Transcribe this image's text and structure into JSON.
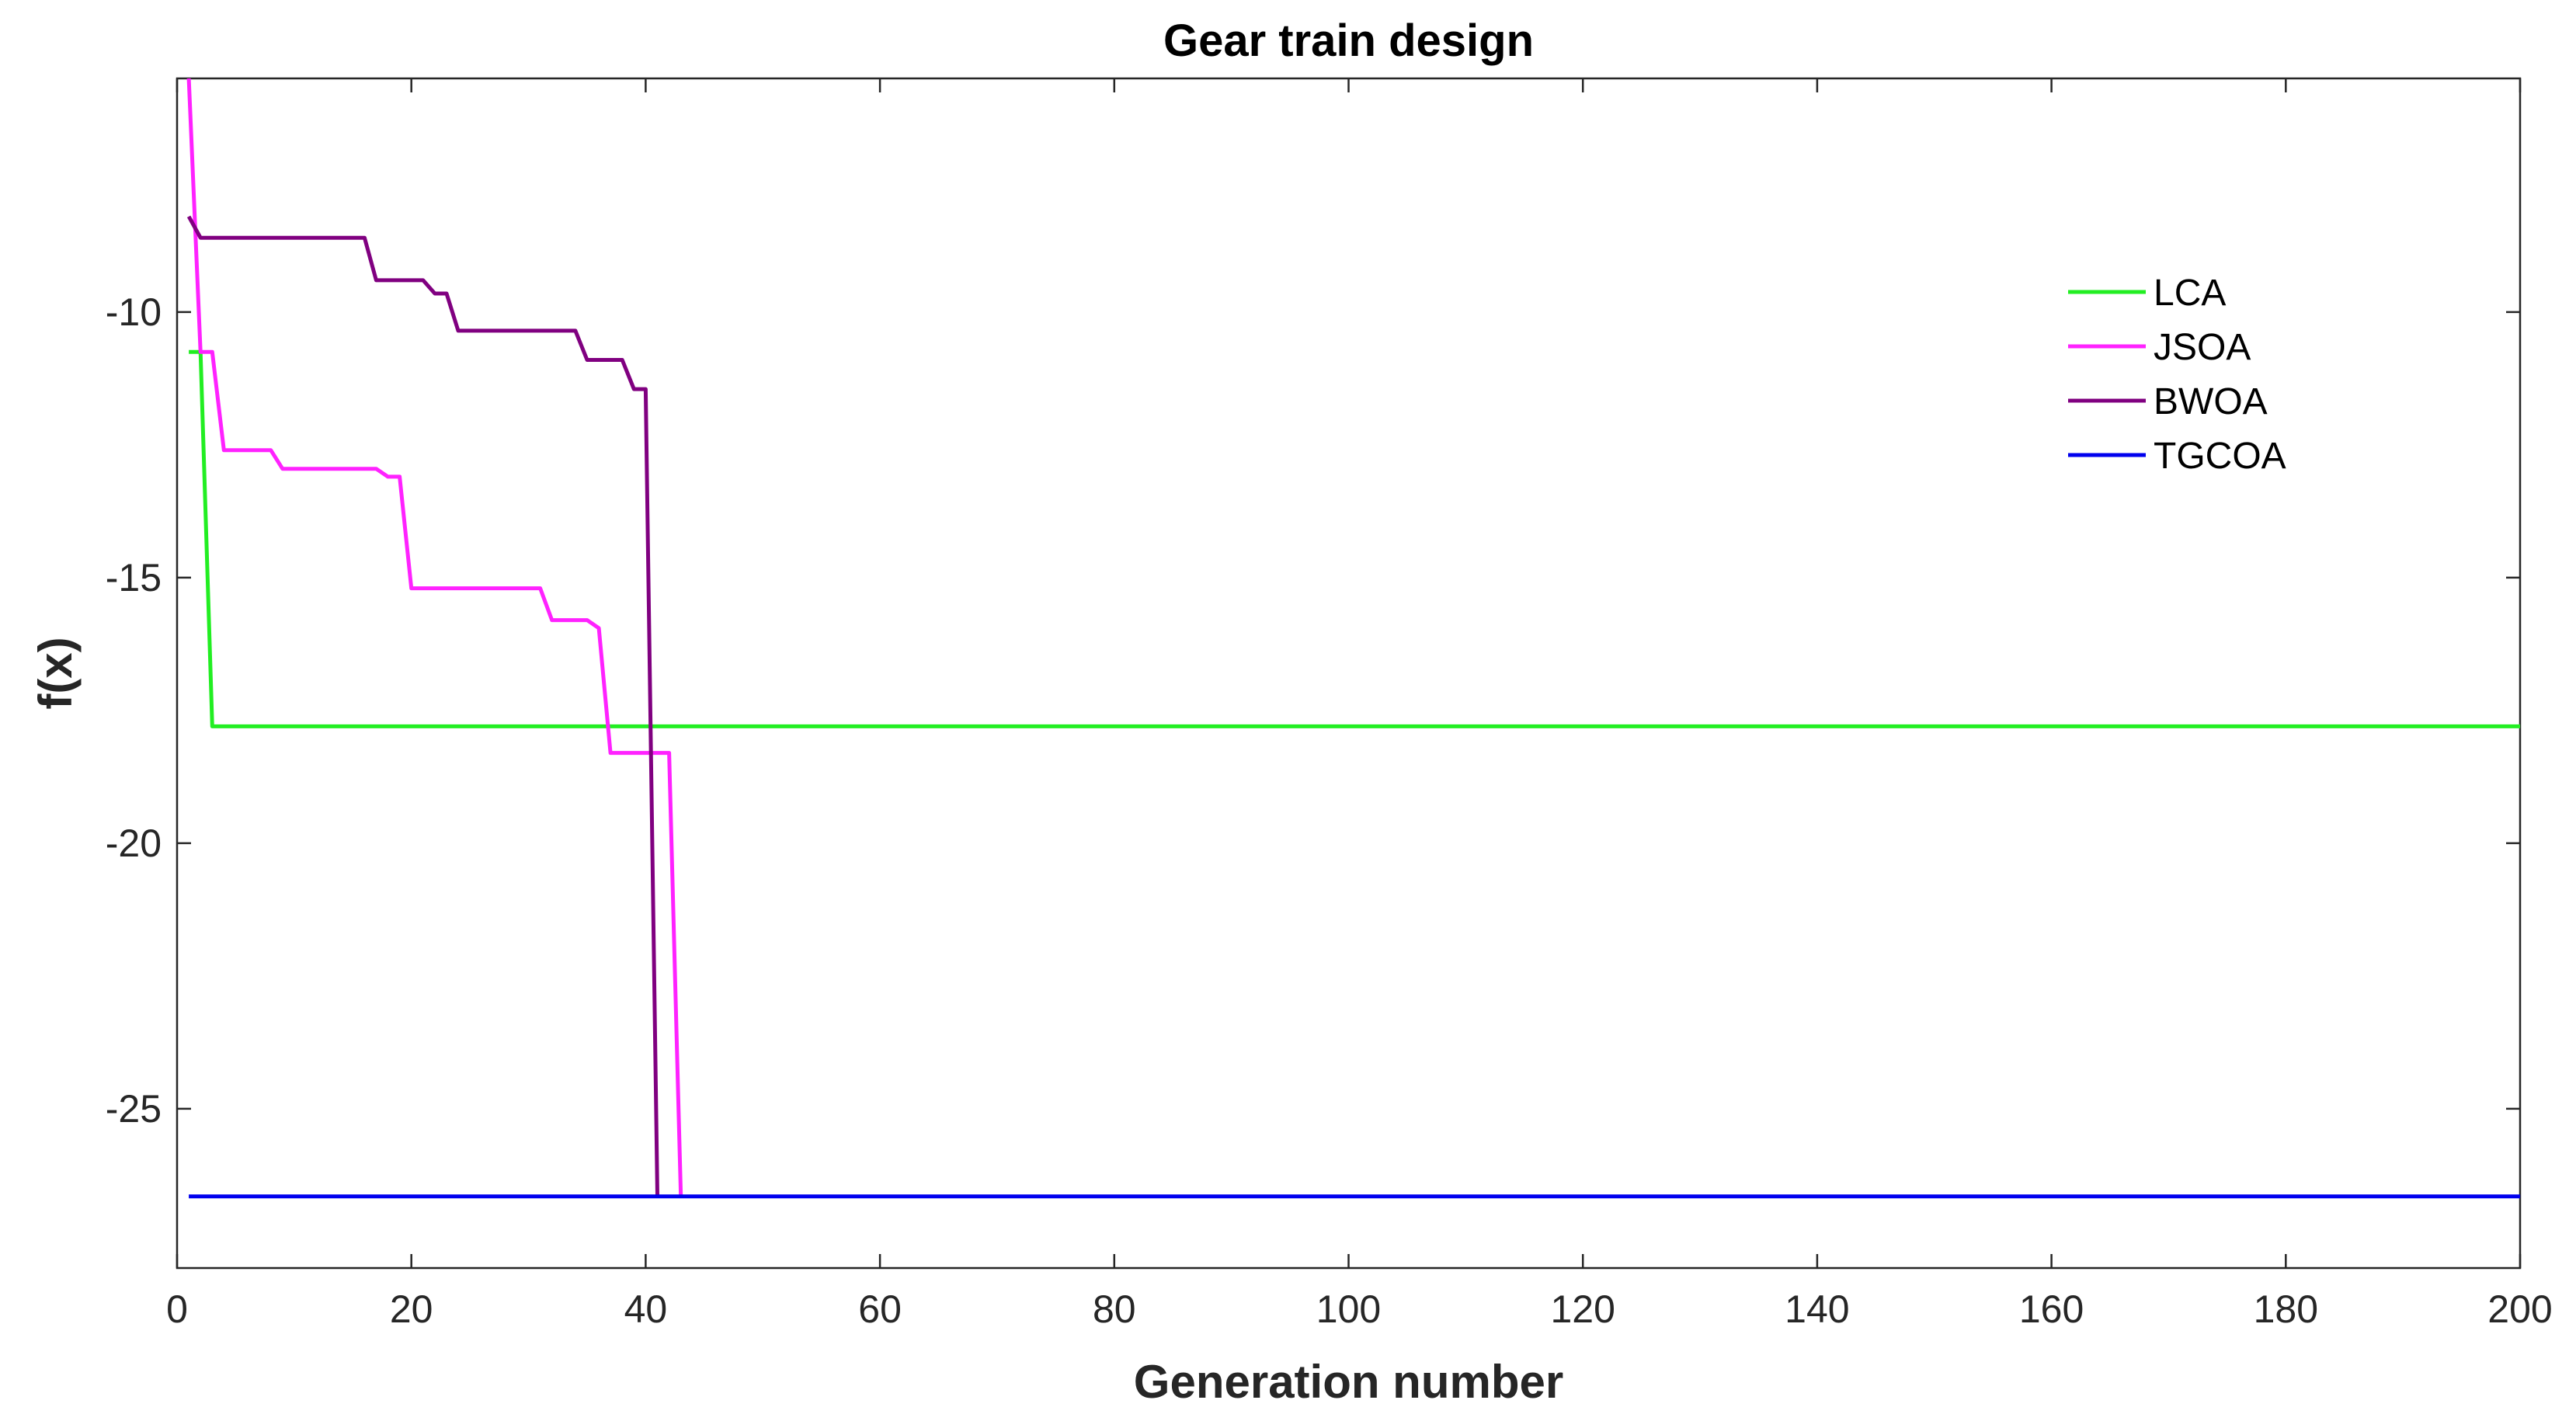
{
  "chart_data": {
    "type": "line",
    "title": "Gear train design",
    "xlabel": "Generation number",
    "ylabel": "f(x)",
    "xlim": [
      0,
      200
    ],
    "ylim": [
      -28.0,
      -5.6
    ],
    "xticks": [
      0,
      20,
      40,
      60,
      80,
      100,
      120,
      140,
      160,
      180,
      200
    ],
    "yticks": [
      -25,
      -20,
      -15,
      -10
    ],
    "grid": false,
    "legend": {
      "position": "upper-right",
      "box": false
    },
    "series": [
      {
        "name": "LCA",
        "color": "#22ee22",
        "x": [
          1,
          2,
          3,
          200
        ],
        "y": [
          -10.75,
          -10.75,
          -17.8,
          -17.8
        ]
      },
      {
        "name": "JSOA",
        "color": "#ff22ff",
        "x": [
          1,
          2,
          3,
          4,
          8,
          9,
          17,
          18,
          19,
          20,
          31,
          32,
          35,
          36,
          37,
          42,
          43
        ],
        "y": [
          -5.6,
          -10.75,
          -10.75,
          -12.6,
          -12.6,
          -12.95,
          -12.95,
          -13.1,
          -13.1,
          -15.2,
          -15.2,
          -15.8,
          -15.8,
          -15.95,
          -18.3,
          -18.3,
          -26.65
        ]
      },
      {
        "name": "BWOA",
        "color": "#800080",
        "x": [
          1,
          2,
          16,
          17,
          21,
          22,
          23,
          24,
          34,
          35,
          38,
          39,
          40,
          41
        ],
        "y": [
          -8.2,
          -8.6,
          -8.6,
          -9.4,
          -9.4,
          -9.65,
          -9.65,
          -10.35,
          -10.35,
          -10.9,
          -10.9,
          -11.45,
          -11.45,
          -26.65
        ]
      },
      {
        "name": "TGCOA",
        "color": "#0000ee",
        "x": [
          1,
          200
        ],
        "y": [
          -26.65,
          -26.65
        ]
      }
    ]
  }
}
